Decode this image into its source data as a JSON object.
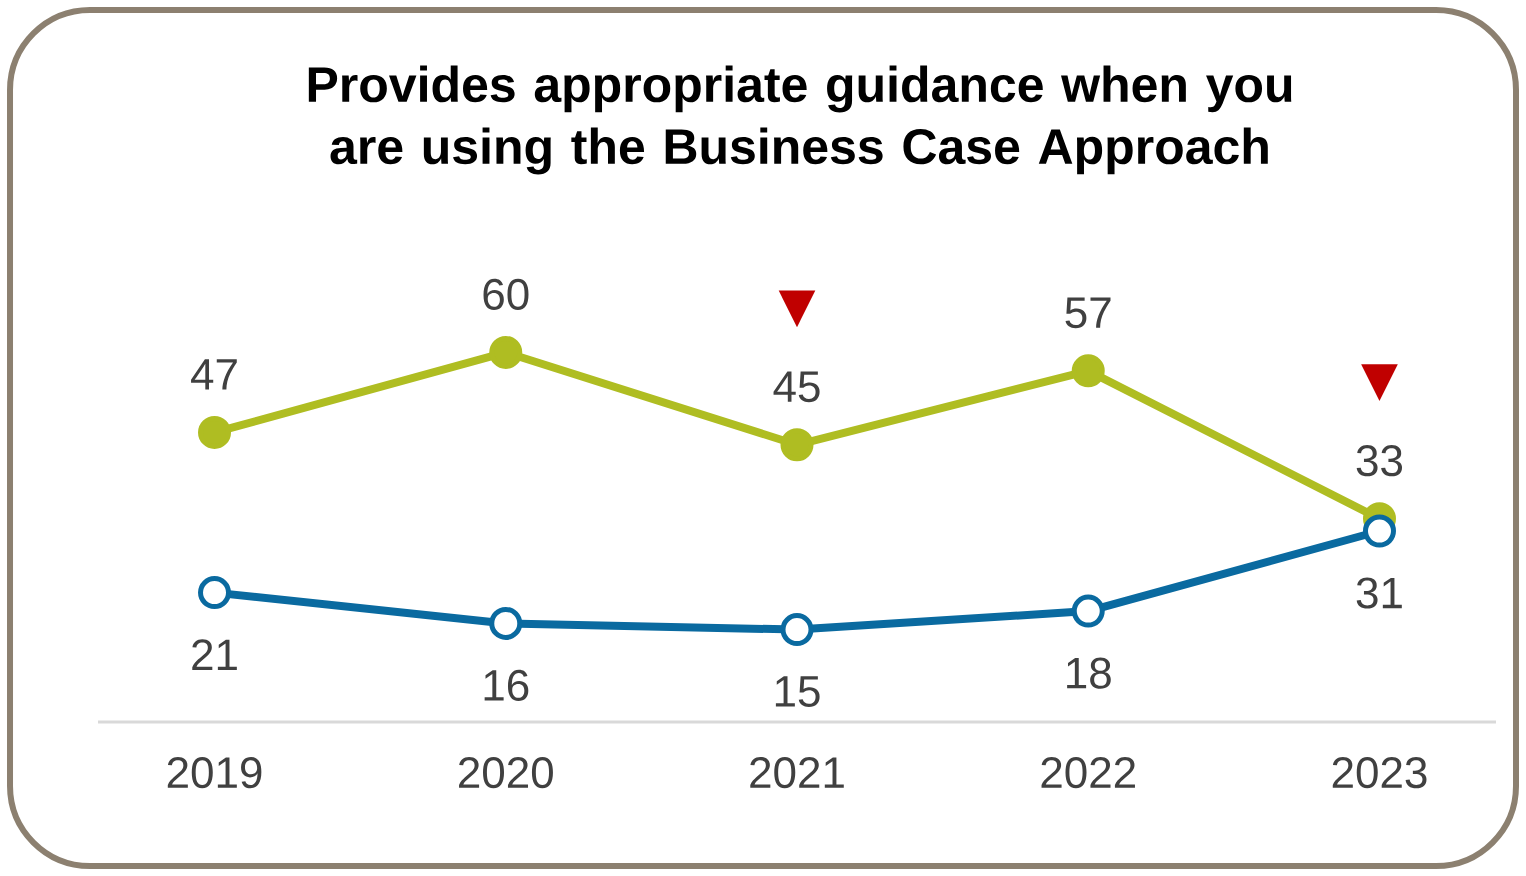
{
  "chart_data": {
    "type": "line",
    "title": "Provides appropriate guidance when you are using the Business Case Approach",
    "categories": [
      "2019",
      "2020",
      "2021",
      "2022",
      "2023"
    ],
    "series": [
      {
        "color": "#afbd22",
        "values": [
          47,
          60,
          45,
          57,
          33
        ]
      },
      {
        "color": "#0a6aa0",
        "values": [
          21,
          16,
          15,
          18,
          31
        ]
      }
    ],
    "marker": "circle",
    "data_labels": true,
    "annotations": [
      {
        "text": "▼",
        "x": "2021",
        "y": 45
      },
      {
        "text": "▼",
        "x": "2023",
        "y": 33
      }
    ]
  }
}
